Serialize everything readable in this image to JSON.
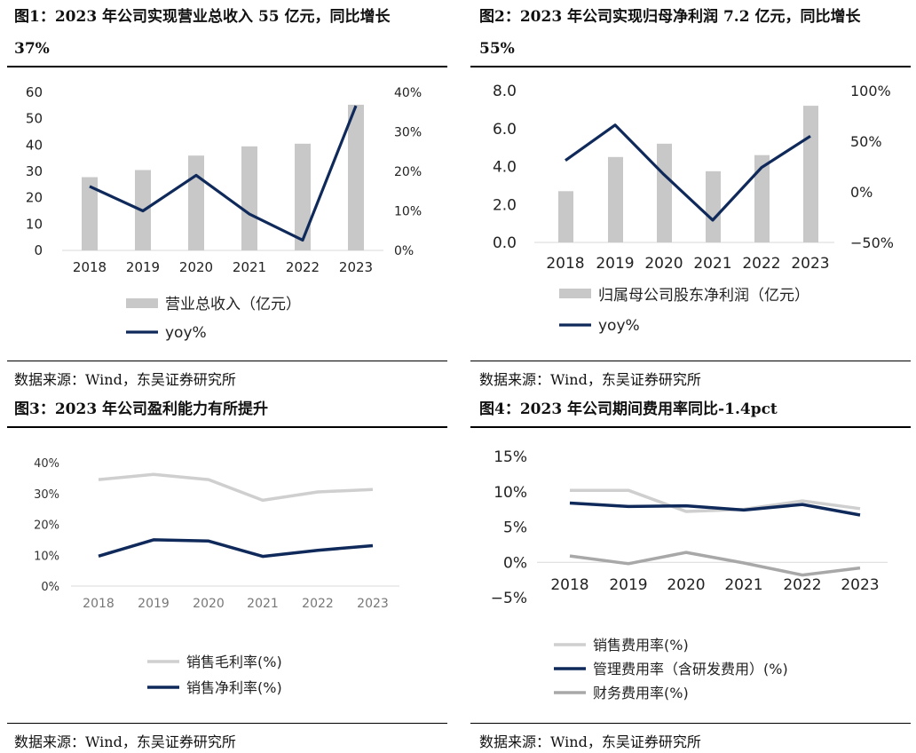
{
  "figures": [
    {
      "title_line1": "图1：2023 年公司实现营业总收入 55 亿元，同比增长",
      "title_line2": "37%",
      "source": "数据来源：Wind，东吴证券研究所"
    },
    {
      "title_line1": "图2：2023 年公司实现归母净利润 7.2 亿元，同比增长",
      "title_line2": "55%",
      "source": "数据来源：Wind，东吴证券研究所"
    },
    {
      "title_line1": "图3：2023 年公司盈利能力有所提升",
      "source": "数据来源：Wind，东吴证券研究所"
    },
    {
      "title_line1": "图4：2023 年公司期间费用率同比-1.4pct",
      "source": "数据来源：Wind，东吴证券研究所"
    }
  ],
  "colors": {
    "bar": "#c8c8c8",
    "navy": "#0f2a5a",
    "lightgray": "#cfcfcf",
    "midgray": "#a8a8a8"
  },
  "chart_data": [
    {
      "type": "bar+line",
      "categories": [
        "2018",
        "2019",
        "2020",
        "2021",
        "2022",
        "2023"
      ],
      "series": [
        {
          "name": "营业总收入（亿元）",
          "type": "bar",
          "axis": "left",
          "values": [
            27.8,
            30.5,
            36.0,
            39.5,
            40.5,
            55.3
          ]
        },
        {
          "name": "yoy%",
          "type": "line",
          "axis": "right",
          "values": [
            16.2,
            10.0,
            19.0,
            9.2,
            2.6,
            36.6
          ]
        }
      ],
      "ylim_left": [
        0,
        60
      ],
      "yticks_left": [
        "0",
        "10",
        "20",
        "30",
        "40",
        "50",
        "60"
      ],
      "ylim_right": [
        0,
        40
      ],
      "yticks_right": [
        "0%",
        "10%",
        "20%",
        "30%",
        "40%"
      ],
      "legend": "bottom",
      "grid": false
    },
    {
      "type": "bar+line",
      "categories": [
        "2018",
        "2019",
        "2020",
        "2021",
        "2022",
        "2023"
      ],
      "series": [
        {
          "name": "归属母公司股东净利润（亿元）",
          "type": "bar",
          "axis": "left",
          "values": [
            2.7,
            4.5,
            5.2,
            3.75,
            4.6,
            7.2
          ]
        },
        {
          "name": "yoy%",
          "type": "line",
          "axis": "right",
          "values": [
            31,
            66,
            17,
            -28,
            24,
            55
          ]
        }
      ],
      "ylim_left": [
        0,
        8
      ],
      "yticks_left": [
        "0.0",
        "2.0",
        "4.0",
        "6.0",
        "8.0"
      ],
      "ylim_right": [
        -50,
        100
      ],
      "yticks_right": [
        "−50%",
        "0%",
        "50%",
        "100%"
      ],
      "legend": "bottom",
      "grid": false
    },
    {
      "type": "line",
      "categories": [
        "2018",
        "2019",
        "2020",
        "2021",
        "2022",
        "2023"
      ],
      "series": [
        {
          "name": "销售毛利率(%)",
          "values": [
            34.5,
            36.2,
            34.5,
            27.8,
            30.5,
            31.3
          ]
        },
        {
          "name": "销售净利率(%)",
          "values": [
            9.7,
            15.0,
            14.6,
            9.6,
            11.6,
            13.1
          ]
        }
      ],
      "ylim": [
        0,
        40
      ],
      "yticks": [
        "0%",
        "10%",
        "20%",
        "30%",
        "40%"
      ],
      "legend": "bottom",
      "grid": false
    },
    {
      "type": "line",
      "categories": [
        "2018",
        "2019",
        "2020",
        "2021",
        "2022",
        "2023"
      ],
      "series": [
        {
          "name": "销售费用率(%)",
          "values": [
            10.2,
            10.2,
            7.2,
            7.5,
            8.7,
            7.6
          ]
        },
        {
          "name": "管理费用率（含研发费用）(%)",
          "values": [
            8.4,
            7.9,
            8.0,
            7.4,
            8.2,
            6.7
          ]
        },
        {
          "name": "财务费用率(%)",
          "values": [
            0.9,
            -0.2,
            1.4,
            -0.1,
            -1.8,
            -0.8
          ]
        }
      ],
      "ylim": [
        -5,
        15
      ],
      "yticks": [
        "−5%",
        "0%",
        "5%",
        "10%",
        "15%"
      ],
      "legend": "bottom",
      "grid": false
    }
  ]
}
